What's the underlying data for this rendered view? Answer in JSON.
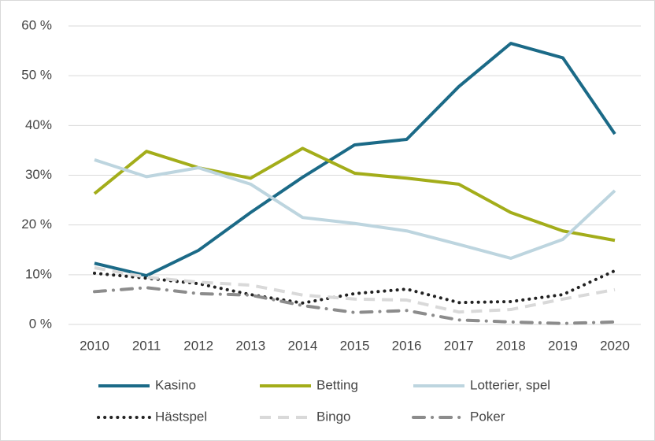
{
  "chart_data": {
    "type": "line",
    "categories": [
      "2010",
      "2011",
      "2012",
      "2013",
      "2014",
      "2015",
      "2016",
      "2017",
      "2018",
      "2019",
      "2020"
    ],
    "series": [
      {
        "name": "Kasino",
        "color": "#1b6a87",
        "line_style": "solid",
        "values": [
          12.3,
          9.8,
          14.9,
          22.5,
          29.6,
          36.1,
          37.2,
          47.8,
          56.5,
          53.6,
          38.3
        ]
      },
      {
        "name": "Betting",
        "color": "#a3ad1a",
        "line_style": "solid",
        "values": [
          26.3,
          34.8,
          31.5,
          29.4,
          35.4,
          30.4,
          29.4,
          28.2,
          22.5,
          18.8,
          16.9
        ]
      },
      {
        "name": "Lotterier, spel",
        "color": "#bdd5df",
        "line_style": "solid",
        "values": [
          33.1,
          29.7,
          31.5,
          28.2,
          21.5,
          20.3,
          18.8,
          16.1,
          13.3,
          17.1,
          26.9
        ]
      },
      {
        "name": "Hästspel",
        "color": "#222222",
        "line_style": "dotted",
        "values": [
          10.3,
          9.3,
          8.2,
          6.0,
          4.3,
          6.2,
          7.1,
          4.4,
          4.6,
          6.0,
          10.8
        ]
      },
      {
        "name": "Bingo",
        "color": "#d9d9d9",
        "line_style": "dashed",
        "values": [
          11.4,
          9.5,
          8.5,
          7.9,
          5.9,
          5.1,
          4.9,
          2.5,
          3.0,
          5.1,
          7.0
        ]
      },
      {
        "name": "Poker",
        "color": "#8c8c8c",
        "line_style": "dashdot",
        "values": [
          6.6,
          7.4,
          6.2,
          5.9,
          3.8,
          2.4,
          2.8,
          0.9,
          0.5,
          0.2,
          0.5
        ]
      }
    ],
    "ylim": [
      0,
      60
    ],
    "yticks": [
      {
        "value": 0,
        "label": "0 %"
      },
      {
        "value": 10,
        "label": "10%"
      },
      {
        "value": 20,
        "label": "20 %"
      },
      {
        "value": 30,
        "label": "30%"
      },
      {
        "value": 40,
        "label": "40%"
      },
      {
        "value": 50,
        "label": "50 %"
      },
      {
        "value": 60,
        "label": "60 %"
      }
    ],
    "grid": true,
    "legend": "bottom"
  }
}
